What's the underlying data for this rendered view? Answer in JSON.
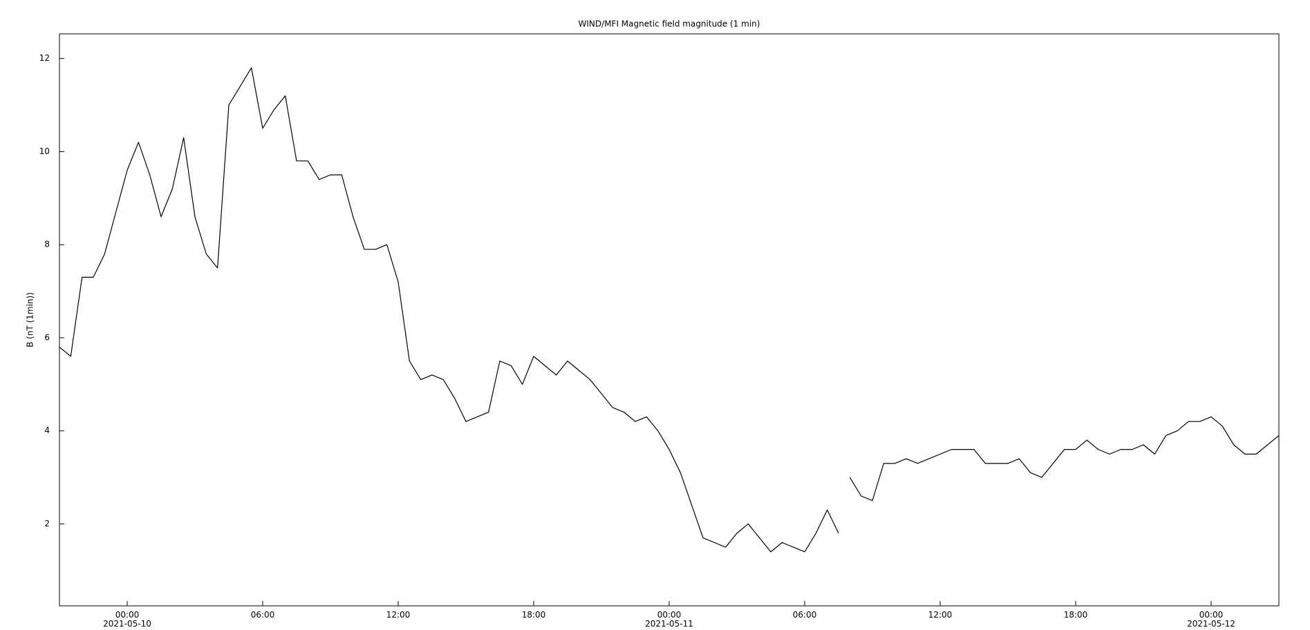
{
  "chart_data": {
    "type": "line",
    "title": "WIND/MFI  Magnetic field magnitude (1 min)",
    "y_label": "B (nT (1min))",
    "xlim": [
      "2021-05-09 21:00",
      "2021-05-12 03:00"
    ],
    "ylim": [
      0.24,
      12.53
    ],
    "xticks": [
      {
        "value": "2021-05-10 00:00",
        "label": "00:00\n2021-05-10"
      },
      {
        "value": "2021-05-10 06:00",
        "label": "06:00"
      },
      {
        "value": "2021-05-10 12:00",
        "label": "12:00"
      },
      {
        "value": "2021-05-10 18:00",
        "label": "18:00"
      },
      {
        "value": "2021-05-11 00:00",
        "label": "00:00\n2021-05-11"
      },
      {
        "value": "2021-05-11 06:00",
        "label": "06:00"
      },
      {
        "value": "2021-05-11 12:00",
        "label": "12:00"
      },
      {
        "value": "2021-05-11 18:00",
        "label": "18:00"
      },
      {
        "value": "2021-05-12 00:00",
        "label": "00:00\n2021-05-12"
      }
    ],
    "yticks": [
      2,
      4,
      6,
      8,
      10,
      12
    ],
    "grid": false,
    "x": [
      "2021-05-09 21:00",
      "2021-05-09 21:30",
      "2021-05-09 22:00",
      "2021-05-09 22:30",
      "2021-05-09 23:00",
      "2021-05-09 23:30",
      "2021-05-10 00:00",
      "2021-05-10 00:30",
      "2021-05-10 01:00",
      "2021-05-10 01:30",
      "2021-05-10 02:00",
      "2021-05-10 02:30",
      "2021-05-10 03:00",
      "2021-05-10 03:30",
      "2021-05-10 04:00",
      "2021-05-10 04:30",
      "2021-05-10 05:00",
      "2021-05-10 05:30",
      "2021-05-10 06:00",
      "2021-05-10 06:30",
      "2021-05-10 07:00",
      "2021-05-10 07:30",
      "2021-05-10 08:00",
      "2021-05-10 08:30",
      "2021-05-10 09:00",
      "2021-05-10 09:30",
      "2021-05-10 10:00",
      "2021-05-10 10:30",
      "2021-05-10 11:00",
      "2021-05-10 11:30",
      "2021-05-10 12:00",
      "2021-05-10 12:30",
      "2021-05-10 13:00",
      "2021-05-10 13:30",
      "2021-05-10 14:00",
      "2021-05-10 14:30",
      "2021-05-10 15:00",
      "2021-05-10 15:30",
      "2021-05-10 16:00",
      "2021-05-10 16:30",
      "2021-05-10 17:00",
      "2021-05-10 17:30",
      "2021-05-10 18:00",
      "2021-05-10 18:30",
      "2021-05-10 19:00",
      "2021-05-10 19:30",
      "2021-05-10 20:00",
      "2021-05-10 20:30",
      "2021-05-10 21:00",
      "2021-05-10 21:30",
      "2021-05-10 22:00",
      "2021-05-10 22:30",
      "2021-05-10 23:00",
      "2021-05-10 23:30",
      "2021-05-11 00:00",
      "2021-05-11 00:30",
      "2021-05-11 01:00",
      "2021-05-11 01:30",
      "2021-05-11 02:00",
      "2021-05-11 02:30",
      "2021-05-11 03:00",
      "2021-05-11 03:30",
      "2021-05-11 04:00",
      "2021-05-11 04:30",
      "2021-05-11 05:00",
      "2021-05-11 05:30",
      "2021-05-11 06:00",
      "2021-05-11 06:30",
      "2021-05-11 07:00",
      "2021-05-11 07:30",
      "2021-05-11 07:45",
      "2021-05-11 08:00",
      "2021-05-11 08:30",
      "2021-05-11 09:00",
      "2021-05-11 09:30",
      "2021-05-11 10:00",
      "2021-05-11 10:30",
      "2021-05-11 11:00",
      "2021-05-11 11:30",
      "2021-05-11 12:00",
      "2021-05-11 12:30",
      "2021-05-11 13:00",
      "2021-05-11 13:30",
      "2021-05-11 14:00",
      "2021-05-11 14:30",
      "2021-05-11 15:00",
      "2021-05-11 15:30",
      "2021-05-11 16:00",
      "2021-05-11 16:30",
      "2021-05-11 17:00",
      "2021-05-11 17:30",
      "2021-05-11 18:00",
      "2021-05-11 18:30",
      "2021-05-11 19:00",
      "2021-05-11 19:30",
      "2021-05-11 20:00",
      "2021-05-11 20:30",
      "2021-05-11 21:00",
      "2021-05-11 21:30",
      "2021-05-11 22:00",
      "2021-05-11 22:30",
      "2021-05-11 23:00",
      "2021-05-11 23:30",
      "2021-05-12 00:00",
      "2021-05-12 00:30",
      "2021-05-12 01:00",
      "2021-05-12 01:30",
      "2021-05-12 02:00",
      "2021-05-12 02:30",
      "2021-05-12 03:00"
    ],
    "series": [
      {
        "color": "#000000",
        "values": [
          5.8,
          5.6,
          7.3,
          7.3,
          7.8,
          8.7,
          9.6,
          10.2,
          9.5,
          8.6,
          9.2,
          10.3,
          8.6,
          7.8,
          7.5,
          11.0,
          11.4,
          11.8,
          10.5,
          10.9,
          11.2,
          9.8,
          9.8,
          9.4,
          9.5,
          9.5,
          8.6,
          7.9,
          7.9,
          8.0,
          7.2,
          5.5,
          5.1,
          5.2,
          5.1,
          4.7,
          4.2,
          4.3,
          4.4,
          5.5,
          5.4,
          5.0,
          5.6,
          5.4,
          5.2,
          5.5,
          5.3,
          5.1,
          4.8,
          4.5,
          4.4,
          4.2,
          4.3,
          4.0,
          3.6,
          3.1,
          2.4,
          1.7,
          1.6,
          1.5,
          1.8,
          2.0,
          1.7,
          1.4,
          1.6,
          1.5,
          1.4,
          1.8,
          2.3,
          1.8,
          null,
          3.0,
          2.6,
          2.5,
          3.3,
          3.3,
          3.4,
          3.3,
          3.4,
          3.5,
          3.6,
          3.6,
          3.6,
          3.3,
          3.3,
          3.3,
          3.4,
          3.1,
          3.0,
          3.3,
          3.6,
          3.6,
          3.8,
          3.6,
          3.5,
          3.6,
          3.6,
          3.7,
          3.5,
          3.9,
          4.0,
          4.2,
          4.2,
          4.3,
          4.1,
          3.7,
          3.5,
          3.5,
          3.7,
          3.9
        ]
      }
    ]
  }
}
